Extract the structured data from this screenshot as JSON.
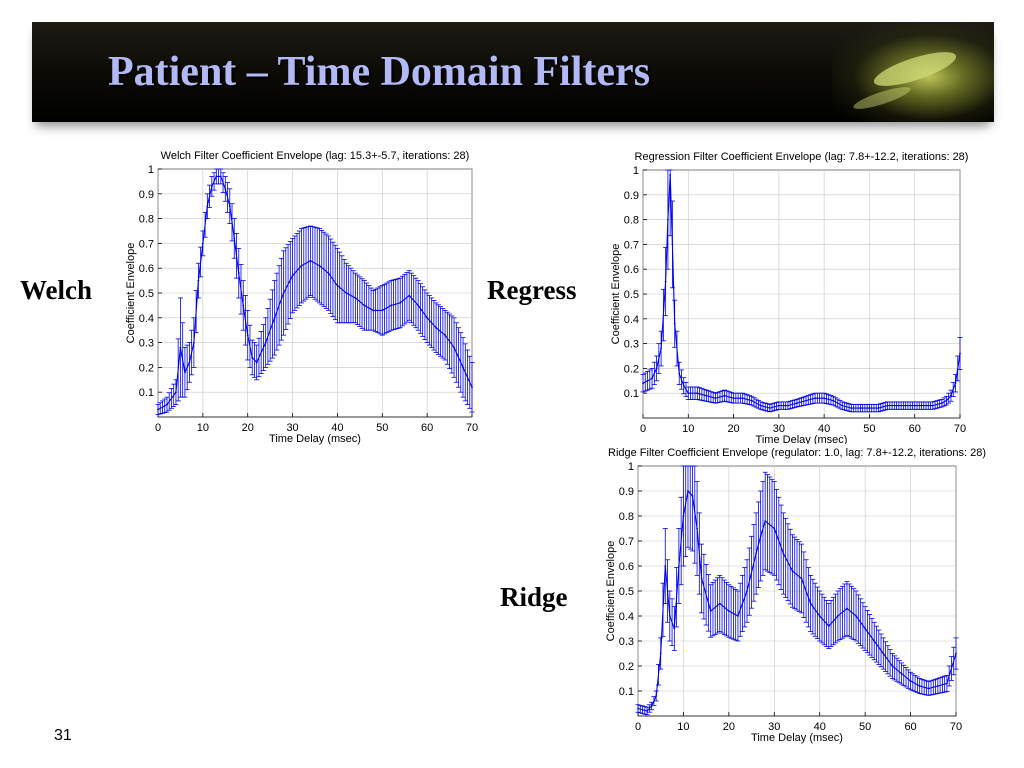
{
  "slide": {
    "title": "Patient – Time Domain Filters",
    "page_number": "31",
    "labels": {
      "welch": "Welch",
      "regress": "Regress",
      "ridge": "Ridge"
    }
  },
  "chart_data": [
    {
      "id": "welch",
      "type": "line",
      "title": "Welch Filter Coefficient Envelope (lag: 15.3+-5.7, iterations: 28)",
      "xlabel": "Time Delay (msec)",
      "ylabel": "Coefficient Envelope",
      "xlim": [
        0,
        70
      ],
      "ylim": [
        0,
        1
      ],
      "xticks": [
        0,
        10,
        20,
        30,
        40,
        50,
        60,
        70
      ],
      "yticks": [
        0.1,
        0.2,
        0.3,
        0.4,
        0.5,
        0.6,
        0.7,
        0.8,
        0.9,
        1
      ],
      "grid": true,
      "error_bars": true,
      "color": "#0000ee",
      "series": [
        {
          "x": [
            0,
            2,
            4,
            5,
            6,
            7,
            8,
            9,
            10,
            11,
            12,
            13,
            14,
            15,
            16,
            17,
            18,
            19,
            20,
            21,
            22,
            24,
            26,
            28,
            30,
            32,
            34,
            36,
            38,
            40,
            42,
            44,
            46,
            48,
            50,
            52,
            54,
            56,
            58,
            60,
            62,
            64,
            66,
            68,
            70
          ],
          "y": [
            0.03,
            0.05,
            0.1,
            0.28,
            0.18,
            0.22,
            0.3,
            0.55,
            0.7,
            0.85,
            0.93,
            0.97,
            0.97,
            0.92,
            0.85,
            0.72,
            0.58,
            0.45,
            0.33,
            0.24,
            0.22,
            0.3,
            0.4,
            0.5,
            0.57,
            0.61,
            0.63,
            0.61,
            0.58,
            0.53,
            0.5,
            0.48,
            0.45,
            0.43,
            0.43,
            0.45,
            0.46,
            0.49,
            0.45,
            0.4,
            0.36,
            0.33,
            0.28,
            0.2,
            0.12
          ],
          "err": [
            0.02,
            0.03,
            0.05,
            0.2,
            0.1,
            0.08,
            0.1,
            0.07,
            0.05,
            0.05,
            0.04,
            0.03,
            0.03,
            0.05,
            0.07,
            0.08,
            0.1,
            0.1,
            0.1,
            0.07,
            0.07,
            0.1,
            0.15,
            0.17,
            0.15,
            0.15,
            0.14,
            0.15,
            0.15,
            0.15,
            0.12,
            0.1,
            0.1,
            0.08,
            0.1,
            0.1,
            0.1,
            0.1,
            0.1,
            0.1,
            0.1,
            0.1,
            0.12,
            0.12,
            0.1
          ]
        }
      ]
    },
    {
      "id": "regress",
      "type": "line",
      "title": "Regression Filter Coefficient Envelope (lag: 7.8+-12.2, iterations: 28)",
      "xlabel": "Time Delay (msec)",
      "ylabel": "Coefficient Envelope",
      "xlim": [
        0,
        70
      ],
      "ylim": [
        0,
        1
      ],
      "xticks": [
        0,
        10,
        20,
        30,
        40,
        50,
        60,
        70
      ],
      "yticks": [
        0.1,
        0.2,
        0.3,
        0.4,
        0.5,
        0.6,
        0.7,
        0.8,
        0.9,
        1
      ],
      "grid": true,
      "error_bars": true,
      "color": "#0000ee",
      "series": [
        {
          "x": [
            0,
            1,
            2,
            3,
            4,
            5,
            5.5,
            6,
            6.5,
            7,
            8,
            9,
            10,
            12,
            14,
            16,
            18,
            20,
            22,
            24,
            26,
            28,
            30,
            32,
            34,
            36,
            38,
            40,
            42,
            44,
            46,
            48,
            50,
            52,
            54,
            56,
            58,
            60,
            62,
            64,
            66,
            67,
            68,
            69,
            70
          ],
          "y": [
            0.14,
            0.15,
            0.16,
            0.2,
            0.28,
            0.55,
            0.8,
            0.98,
            0.7,
            0.38,
            0.18,
            0.13,
            0.1,
            0.1,
            0.09,
            0.08,
            0.09,
            0.08,
            0.08,
            0.07,
            0.05,
            0.04,
            0.05,
            0.05,
            0.06,
            0.07,
            0.08,
            0.08,
            0.07,
            0.05,
            0.04,
            0.04,
            0.04,
            0.04,
            0.05,
            0.05,
            0.05,
            0.05,
            0.05,
            0.05,
            0.06,
            0.07,
            0.09,
            0.14,
            0.26
          ]
        }
      ]
    },
    {
      "id": "ridge",
      "type": "line",
      "title": "Ridge Filter Coefficient Envelope (regulator: 1.0, lag: 7.8+-12.2, iterations: 28)",
      "xlabel": "Time Delay (msec)",
      "ylabel": "Coefficient Envelope",
      "xlim": [
        0,
        70
      ],
      "ylim": [
        0,
        1
      ],
      "xticks": [
        0,
        10,
        20,
        30,
        40,
        50,
        60,
        70
      ],
      "yticks": [
        0.1,
        0.2,
        0.3,
        0.4,
        0.5,
        0.6,
        0.7,
        0.8,
        0.9,
        1
      ],
      "grid": true,
      "error_bars": true,
      "color": "#0000ee",
      "series": [
        {
          "x": [
            0,
            2,
            3,
            4,
            5,
            6,
            7,
            8,
            9,
            10,
            11,
            12,
            13,
            14,
            16,
            18,
            20,
            22,
            24,
            26,
            27,
            28,
            30,
            32,
            34,
            36,
            38,
            40,
            42,
            44,
            46,
            48,
            50,
            52,
            54,
            56,
            58,
            60,
            62,
            64,
            66,
            68,
            70
          ],
          "y": [
            0.03,
            0.02,
            0.04,
            0.08,
            0.25,
            0.6,
            0.4,
            0.35,
            0.6,
            0.8,
            0.9,
            0.88,
            0.75,
            0.55,
            0.42,
            0.45,
            0.42,
            0.4,
            0.5,
            0.65,
            0.72,
            0.78,
            0.75,
            0.65,
            0.58,
            0.55,
            0.45,
            0.4,
            0.36,
            0.4,
            0.43,
            0.4,
            0.35,
            0.3,
            0.25,
            0.2,
            0.17,
            0.14,
            0.12,
            0.11,
            0.12,
            0.13,
            0.25
          ]
        }
      ]
    }
  ]
}
